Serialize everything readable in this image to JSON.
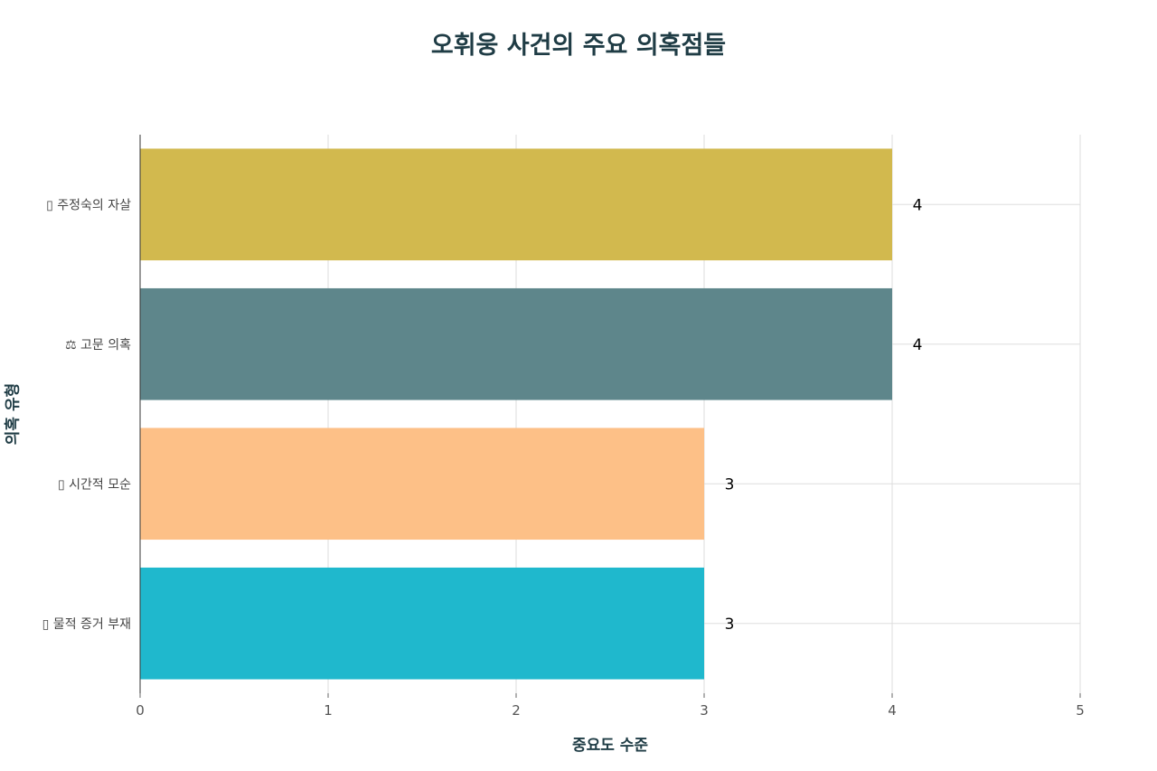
{
  "chart_data": {
    "type": "bar",
    "orientation": "horizontal",
    "title": "오휘웅 사건의 주요 의혹점들",
    "xlabel": "중요도 수준",
    "ylabel": "의혹 유형",
    "categories": [
      "▯ 주정숙의 자살",
      "⚖ 고문 의혹",
      "▯ 시간적 모순",
      "▯ 물적 증거 부재"
    ],
    "values": [
      4,
      4,
      3,
      3
    ],
    "data_labels": [
      "4",
      "4",
      "3",
      "3"
    ],
    "bar_colors": [
      "#D2B94E",
      "#5E868B",
      "#FDC087",
      "#1FB8CD"
    ],
    "xlim": [
      0,
      5
    ],
    "xticks": [
      "0",
      "1",
      "2",
      "3",
      "4",
      "5"
    ],
    "grid": true,
    "legend": false
  }
}
